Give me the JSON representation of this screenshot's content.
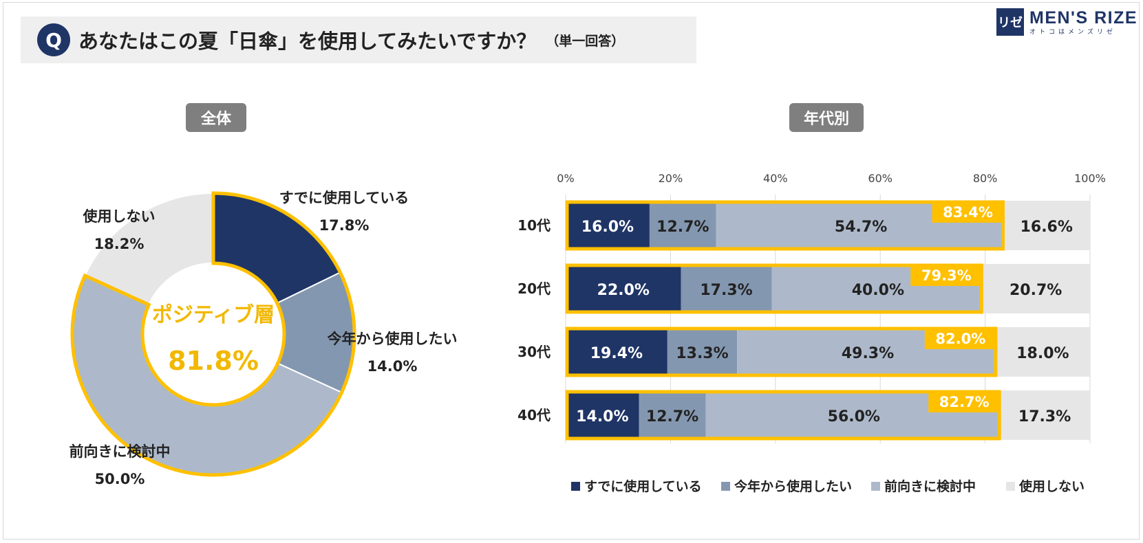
{
  "title": {
    "q_badge": "Q",
    "question": "あなたはこの夏「日傘」を使用してみたいですか？",
    "note": "（単一回答）"
  },
  "logo": {
    "mark": "リゼ",
    "name": "MEN'S RIZE",
    "tagline": "オトコはメンズリゼ"
  },
  "colors": {
    "already": "#1f3566",
    "this_year": "#8497b0",
    "considering": "#adb9ca",
    "not_use": "#e7e6e6",
    "highlight": "#ffc000",
    "highlight_text": "#f2b800"
  },
  "chart_data": [
    {
      "type": "pie",
      "label": "全体",
      "donut": true,
      "categories": [
        "すでに使用している",
        "今年から使用したい",
        "前向きに検討中",
        "使用しない"
      ],
      "values": [
        17.8,
        14.0,
        50.0,
        18.2
      ],
      "value_labels": [
        "17.8%",
        "14.0%",
        "50.0%",
        "18.2%"
      ],
      "center_label": "ポジティブ層",
      "center_value": "81.8%"
    },
    {
      "type": "bar",
      "orientation": "horizontal",
      "stacked": true,
      "label": "年代別",
      "categories": [
        "10代",
        "20代",
        "30代",
        "40代"
      ],
      "series": [
        {
          "name": "すでに使用している",
          "values": [
            16.0,
            22.0,
            19.4,
            14.0
          ],
          "labels": [
            "16.0%",
            "22.0%",
            "19.4%",
            "14.0%"
          ]
        },
        {
          "name": "今年から使用したい",
          "values": [
            12.7,
            17.3,
            13.3,
            12.7
          ],
          "labels": [
            "12.7%",
            "17.3%",
            "13.3%",
            "12.7%"
          ]
        },
        {
          "name": "前向きに検討中",
          "values": [
            54.7,
            40.0,
            49.3,
            56.0
          ],
          "labels": [
            "54.7%",
            "40.0%",
            "49.3%",
            "56.0%"
          ]
        },
        {
          "name": "使用しない",
          "values": [
            16.6,
            20.7,
            18.0,
            17.3
          ],
          "labels": [
            "16.6%",
            "20.7%",
            "18.0%",
            "17.3%"
          ]
        }
      ],
      "positive_totals": [
        83.4,
        79.3,
        82.0,
        82.7
      ],
      "positive_labels": [
        "83.4%",
        "79.3%",
        "82.0%",
        "82.7%"
      ],
      "xlim": [
        0,
        100
      ],
      "x_ticks": [
        "0%",
        "20%",
        "40%",
        "60%",
        "80%",
        "100%"
      ],
      "legend": [
        "すでに使用している",
        "今年から使用したい",
        "前向きに検討中",
        "使用しない"
      ],
      "legend_position": "bottom"
    }
  ]
}
